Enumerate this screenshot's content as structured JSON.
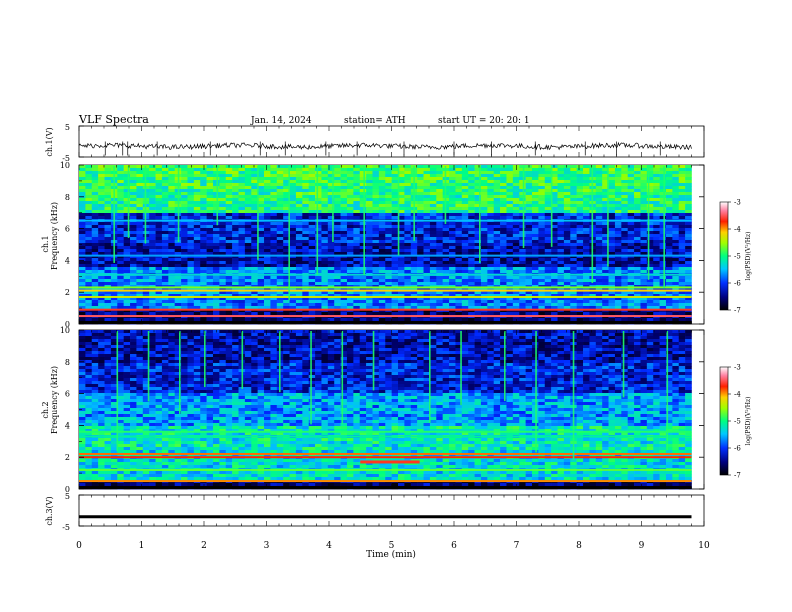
{
  "header": {
    "title": "VLF  Spectra",
    "date": "Jan.  14,  2024",
    "station": "station= ATH",
    "start": "start  UT  =    20: 20: 1"
  },
  "chart_data": [
    {
      "type": "line",
      "name": "ch1-waveform",
      "ylabel": "ch.1(V)",
      "ylim": [
        -5,
        5
      ],
      "yticks": [
        "5",
        "-5"
      ],
      "xlim": [
        0,
        10
      ],
      "baseline": -1.5,
      "spikes_min": [
        0.42,
        0.7,
        0.78,
        1.25,
        2.1,
        2.9,
        3.3,
        3.95,
        4.45,
        5.2,
        6.0,
        6.6,
        7.3,
        8.1,
        8.6,
        9.3
      ]
    },
    {
      "type": "heatmap",
      "name": "ch1-spectrogram",
      "ylabel": "ch.1\nFrequency  (kHz)",
      "ylabel_lines": [
        "ch.1",
        "Frequency  (kHz)"
      ],
      "ylim": [
        0,
        10
      ],
      "yticks": [
        "0",
        "2",
        "4",
        "6",
        "8",
        "10"
      ],
      "xlim": [
        0,
        9.8
      ],
      "colorbar": {
        "label": "log(PSD)(V²/Hz)",
        "range": [
          -7,
          -3
        ],
        "ticks": [
          "-3",
          "-4",
          "-5",
          "-6",
          "-7"
        ]
      },
      "bands_khz": [
        {
          "f": 0.5,
          "level": -3.6
        },
        {
          "f": 0.9,
          "level": -3.8
        },
        {
          "f": 1.7,
          "level": -4.6
        },
        {
          "f": 2.1,
          "level": -4.4
        },
        {
          "f": 2.3,
          "level": -4.9
        },
        {
          "f": 3.1,
          "level": -5.6
        },
        {
          "f": 4.3,
          "level": -5.9
        },
        {
          "f": 6.5,
          "level": -5.8
        }
      ],
      "sferic_times_min": [
        0.55,
        0.78,
        1.05,
        1.58,
        2.2,
        2.85,
        3.35,
        3.8,
        4.05,
        4.55,
        5.1,
        5.35,
        5.85,
        6.4,
        7.1,
        7.55,
        8.2,
        8.45,
        9.1,
        9.35
      ]
    },
    {
      "type": "heatmap",
      "name": "ch2-spectrogram",
      "ylabel": "ch.2\nFrequency  (kHz)",
      "ylabel_lines": [
        "ch.2",
        "Frequency  (kHz)"
      ],
      "ylim": [
        0,
        10
      ],
      "yticks": [
        "0",
        "2",
        "4",
        "6",
        "8",
        "10"
      ],
      "xlim": [
        0,
        9.8
      ],
      "colorbar": {
        "label": "log(PSD)(V²/Hz)",
        "range": [
          -7,
          -3
        ],
        "ticks": [
          "-3",
          "-4",
          "-5",
          "-6",
          "-7"
        ]
      },
      "bands_khz": [
        {
          "f": 0.5,
          "level": -4.2
        },
        {
          "f": 1.2,
          "level": -5.0
        },
        {
          "f": 2.0,
          "level": -3.9
        },
        {
          "f": 2.2,
          "level": -4.1
        },
        {
          "f": 3.3,
          "level": -5.4
        },
        {
          "f": 3.6,
          "level": -5.2
        }
      ],
      "segment": {
        "t0": 4.5,
        "t1": 5.45,
        "f": 1.7,
        "level": -3.8
      },
      "sferic_times_min": [
        0.6,
        1.1,
        1.6,
        2.0,
        2.6,
        3.2,
        3.7,
        4.2,
        4.7,
        5.6,
        6.1,
        6.8,
        7.3,
        7.9,
        8.7,
        9.4
      ]
    },
    {
      "type": "line",
      "name": "ch3-waveform",
      "ylabel": "ch.3(V)",
      "ylim": [
        -5,
        5
      ],
      "yticks": [
        "5",
        "-5"
      ],
      "xlim": [
        0,
        10
      ],
      "baseline": -2.0,
      "xlabel": "Time  (min)",
      "xticks": [
        "0",
        "1",
        "2",
        "3",
        "4",
        "5",
        "6",
        "7",
        "8",
        "9",
        "10"
      ]
    }
  ]
}
